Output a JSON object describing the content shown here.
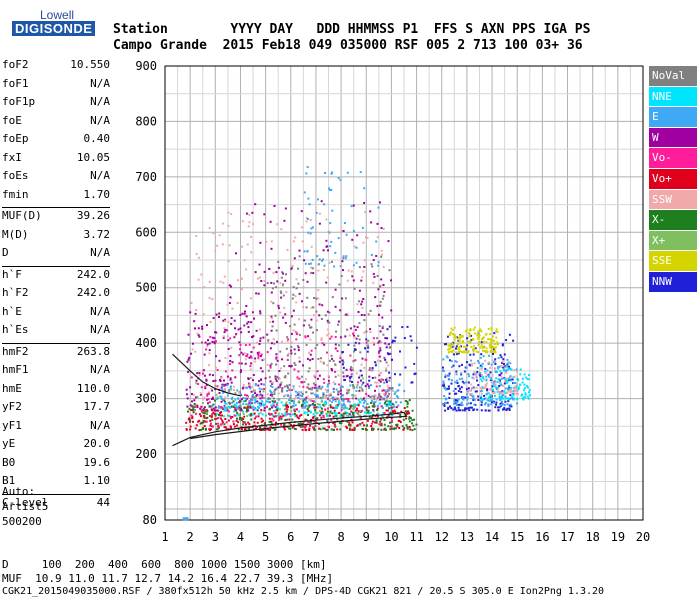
{
  "logo": {
    "line1": "Lowell",
    "line2": "DIGISONDE"
  },
  "header": {
    "labels": "Station        YYYY DAY   DDD HHMMSS P1  FFS S AXN PPS IGA PS",
    "values": "Campo Grande  2015 Feb18 049 035000 RSF 005 2 713 100 03+ 36"
  },
  "params": [
    {
      "name": "foF2",
      "value": "10.550"
    },
    {
      "name": "foF1",
      "value": "N/A"
    },
    {
      "name": "foF1p",
      "value": "N/A"
    },
    {
      "name": "foE",
      "value": "N/A"
    },
    {
      "name": "foEp",
      "value": "0.40"
    },
    {
      "name": "fxI",
      "value": "10.05"
    },
    {
      "name": "foEs",
      "value": "N/A"
    },
    {
      "name": "fmin",
      "value": "1.70"
    },
    {
      "sep": true
    },
    {
      "name": "MUF(D)",
      "value": "39.26"
    },
    {
      "name": "M(D)",
      "value": "3.72"
    },
    {
      "name": "D",
      "value": "N/A"
    },
    {
      "sep": true
    },
    {
      "name": "h`F",
      "value": "242.0"
    },
    {
      "name": "h`F2",
      "value": "242.0"
    },
    {
      "name": "h`E",
      "value": "N/A"
    },
    {
      "name": "h`Es",
      "value": "N/A"
    },
    {
      "sep": true
    },
    {
      "name": "hmF2",
      "value": "263.8"
    },
    {
      "name": "hmF1",
      "value": "N/A"
    },
    {
      "name": "hmE",
      "value": "110.0"
    },
    {
      "name": "yF2",
      "value": "17.7"
    },
    {
      "name": "yF1",
      "value": "N/A"
    },
    {
      "name": "yE",
      "value": "20.0"
    },
    {
      "name": "B0",
      "value": "19.6"
    },
    {
      "name": "B1",
      "value": "1.10"
    },
    {
      "sep": true
    },
    {
      "name": "C-level",
      "value": "44"
    }
  ],
  "auto": {
    "line1": "Auto:",
    "line2": "Artist5",
    "line3": "500200"
  },
  "legend": [
    {
      "label": "NoVal",
      "color": "#808080"
    },
    {
      "label": "NNE",
      "color": "#00e5ff"
    },
    {
      "label": "E",
      "color": "#3fa9f5"
    },
    {
      "label": "W",
      "color": "#a0009f"
    },
    {
      "label": "Vo-",
      "color": "#ff1c9a"
    },
    {
      "label": "Vo+",
      "color": "#e0001c"
    },
    {
      "label": "SSW",
      "color": "#f0a8a8"
    },
    {
      "label": "X-",
      "color": "#1e7f1e"
    },
    {
      "label": "X+",
      "color": "#7fbf5f"
    },
    {
      "label": "SSE",
      "color": "#d4d400"
    },
    {
      "label": "NNW",
      "color": "#2020d8"
    }
  ],
  "footer": {
    "line1": "D     100  200  400  600  800 1000 1500 3000 [km]",
    "line2": "MUF  10.9 11.0 11.7 12.7 14.2 16.4 22.7 39.3 [MHz]",
    "line3": "CGK21_2015049035000.RSF / 380fx512h 50 kHz 2.5 km / DPS-4D CGK21 821 / 20.5 S 305.0 E Ion2Png 1.3.20"
  },
  "chart_data": {
    "type": "scatter",
    "xlim": [
      1,
      20
    ],
    "ylim": [
      80,
      900
    ],
    "x_ticks": [
      "1",
      "2",
      "3",
      "4",
      "5",
      "6",
      "7",
      "8",
      "9",
      "10",
      "11",
      "12",
      "13",
      "14",
      "15",
      "16",
      "17",
      "18",
      "19",
      "20"
    ],
    "y_ticks": [
      "80",
      "200",
      "300",
      "400",
      "500",
      "600",
      "700",
      "800",
      "900"
    ],
    "grid": true,
    "traces": {
      "trace_lower": [
        [
          1.3,
          215
        ],
        [
          2,
          230
        ],
        [
          3,
          240
        ],
        [
          4,
          247
        ],
        [
          5,
          252
        ],
        [
          6,
          257
        ],
        [
          7,
          261
        ],
        [
          8,
          265
        ],
        [
          9,
          268
        ],
        [
          10,
          272
        ],
        [
          10.5,
          275
        ],
        [
          10.6,
          268
        ],
        [
          9,
          263
        ],
        [
          7,
          255
        ],
        [
          5,
          246
        ],
        [
          3,
          235
        ],
        [
          2,
          228
        ]
      ],
      "trace_upper": [
        [
          1.3,
          380
        ],
        [
          2,
          350
        ],
        [
          2.5,
          330
        ],
        [
          3,
          318
        ],
        [
          3.5,
          310
        ],
        [
          4,
          305
        ]
      ]
    },
    "clusters": [
      {
        "color": "#a0009f",
        "x": [
          1.8,
          5.5
        ],
        "y": [
          280,
          460
        ],
        "n": 260
      },
      {
        "color": "#a0009f",
        "x": [
          5.5,
          10
        ],
        "y": [
          300,
          470
        ],
        "n": 120
      },
      {
        "color": "#3fa9f5",
        "x": [
          3,
          10.5
        ],
        "y": [
          285,
          330
        ],
        "n": 260
      },
      {
        "color": "#00e5ff",
        "x": [
          2.5,
          10
        ],
        "y": [
          270,
          300
        ],
        "n": 160
      },
      {
        "color": "#e0001c",
        "x": [
          1.8,
          10.8
        ],
        "y": [
          245,
          290
        ],
        "n": 300
      },
      {
        "color": "#1e7f1e",
        "x": [
          1.8,
          11
        ],
        "y": [
          245,
          300
        ],
        "n": 220
      },
      {
        "color": "#f0a8a8",
        "x": [
          2,
          10
        ],
        "y": [
          300,
          640
        ],
        "n": 260
      },
      {
        "color": "#ff1c9a",
        "x": [
          2,
          10
        ],
        "y": [
          250,
          420
        ],
        "n": 180
      },
      {
        "color": "#808080",
        "x": [
          5,
          10
        ],
        "y": [
          300,
          560
        ],
        "n": 200
      },
      {
        "color": "#2020d8",
        "x": [
          8,
          11
        ],
        "y": [
          330,
          440
        ],
        "n": 60
      },
      {
        "color": "#2020d8",
        "x": [
          12,
          14.8
        ],
        "y": [
          280,
          420
        ],
        "n": 220
      },
      {
        "color": "#d4d400",
        "x": [
          12.2,
          14.2
        ],
        "y": [
          385,
          430
        ],
        "n": 160
      },
      {
        "color": "#00e5ff",
        "x": [
          13.5,
          15.5
        ],
        "y": [
          300,
          360
        ],
        "n": 120
      },
      {
        "color": "#3fa9f5",
        "x": [
          12,
          15
        ],
        "y": [
          290,
          380
        ],
        "n": 140
      },
      {
        "color": "#f0a8a8",
        "x": [
          13,
          15
        ],
        "y": [
          310,
          370
        ],
        "n": 80
      },
      {
        "color": "#3fa9f5",
        "x": [
          6.5,
          9.5
        ],
        "y": [
          540,
          720
        ],
        "n": 60
      },
      {
        "color": "#a0009f",
        "x": [
          3.5,
          10
        ],
        "y": [
          450,
          660
        ],
        "n": 100
      },
      {
        "color": "#7fbf5f",
        "x": [
          2,
          9
        ],
        "y": [
          270,
          340
        ],
        "n": 60
      }
    ]
  }
}
